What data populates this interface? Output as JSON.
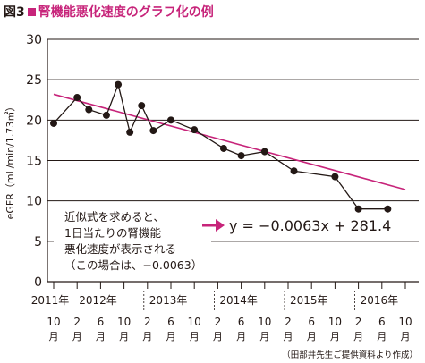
{
  "figure": {
    "label": "図3",
    "title": "腎機能悪化速度のグラフ化の例",
    "credit": "（田部井先生ご提供資料より作成）"
  },
  "chart_data": {
    "type": "line",
    "ylabel": "eGFR（mL/min/1.73㎡）",
    "ylim": [
      0,
      30
    ],
    "yticks": [
      0,
      5,
      10,
      15,
      20,
      25,
      30
    ],
    "grid": "horizontal",
    "x_ticks": [
      {
        "year": "2011年",
        "month": "10",
        "unit": "月"
      },
      {
        "year": "2012年",
        "month": "2",
        "unit": "月"
      },
      {
        "year": "",
        "month": "6",
        "unit": "月"
      },
      {
        "year": "",
        "month": "10",
        "unit": "月"
      },
      {
        "year": "2013年",
        "month": "2",
        "unit": "月"
      },
      {
        "year": "",
        "month": "6",
        "unit": "月"
      },
      {
        "year": "",
        "month": "10",
        "unit": "月"
      },
      {
        "year": "2014年",
        "month": "2",
        "unit": "月"
      },
      {
        "year": "",
        "month": "6",
        "unit": "月"
      },
      {
        "year": "",
        "month": "10",
        "unit": "月"
      },
      {
        "year": "2015年",
        "month": "2",
        "unit": "月"
      },
      {
        "year": "",
        "month": "6",
        "unit": "月"
      },
      {
        "year": "",
        "month": "10",
        "unit": "月"
      },
      {
        "year": "2016年",
        "month": "2",
        "unit": "月"
      },
      {
        "year": "",
        "month": "6",
        "unit": "月"
      },
      {
        "year": "",
        "month": "10",
        "unit": "月"
      }
    ],
    "series": [
      {
        "x": [
          "2011-10",
          "2012-02",
          "2012-04",
          "2012-07",
          "2012-09",
          "2012-11",
          "2013-01",
          "2013-03",
          "2013-06",
          "2013-10",
          "2014-03",
          "2014-06",
          "2014-10",
          "2015-03",
          "2015-10",
          "2016-02",
          "2016-07"
        ],
        "y": [
          19.6,
          22.8,
          21.3,
          20.6,
          24.4,
          18.5,
          21.8,
          18.7,
          20.0,
          18.8,
          16.5,
          15.6,
          16.1,
          13.7,
          13.0,
          9.0,
          9.0
        ],
        "color": "#231815"
      }
    ],
    "trendline": {
      "color": "#c7247a",
      "x": [
        "2011-10",
        "2016-10"
      ],
      "y": [
        23.2,
        11.4
      ],
      "equation": "y = −0.0063x + 281.4"
    },
    "annotation": {
      "lines": [
        "近似式を求めると、",
        "1日当たりの腎機能",
        "悪化速度が表示される",
        "（この場合は、−0.0063）"
      ],
      "arrow_color": "#c7247a"
    }
  }
}
